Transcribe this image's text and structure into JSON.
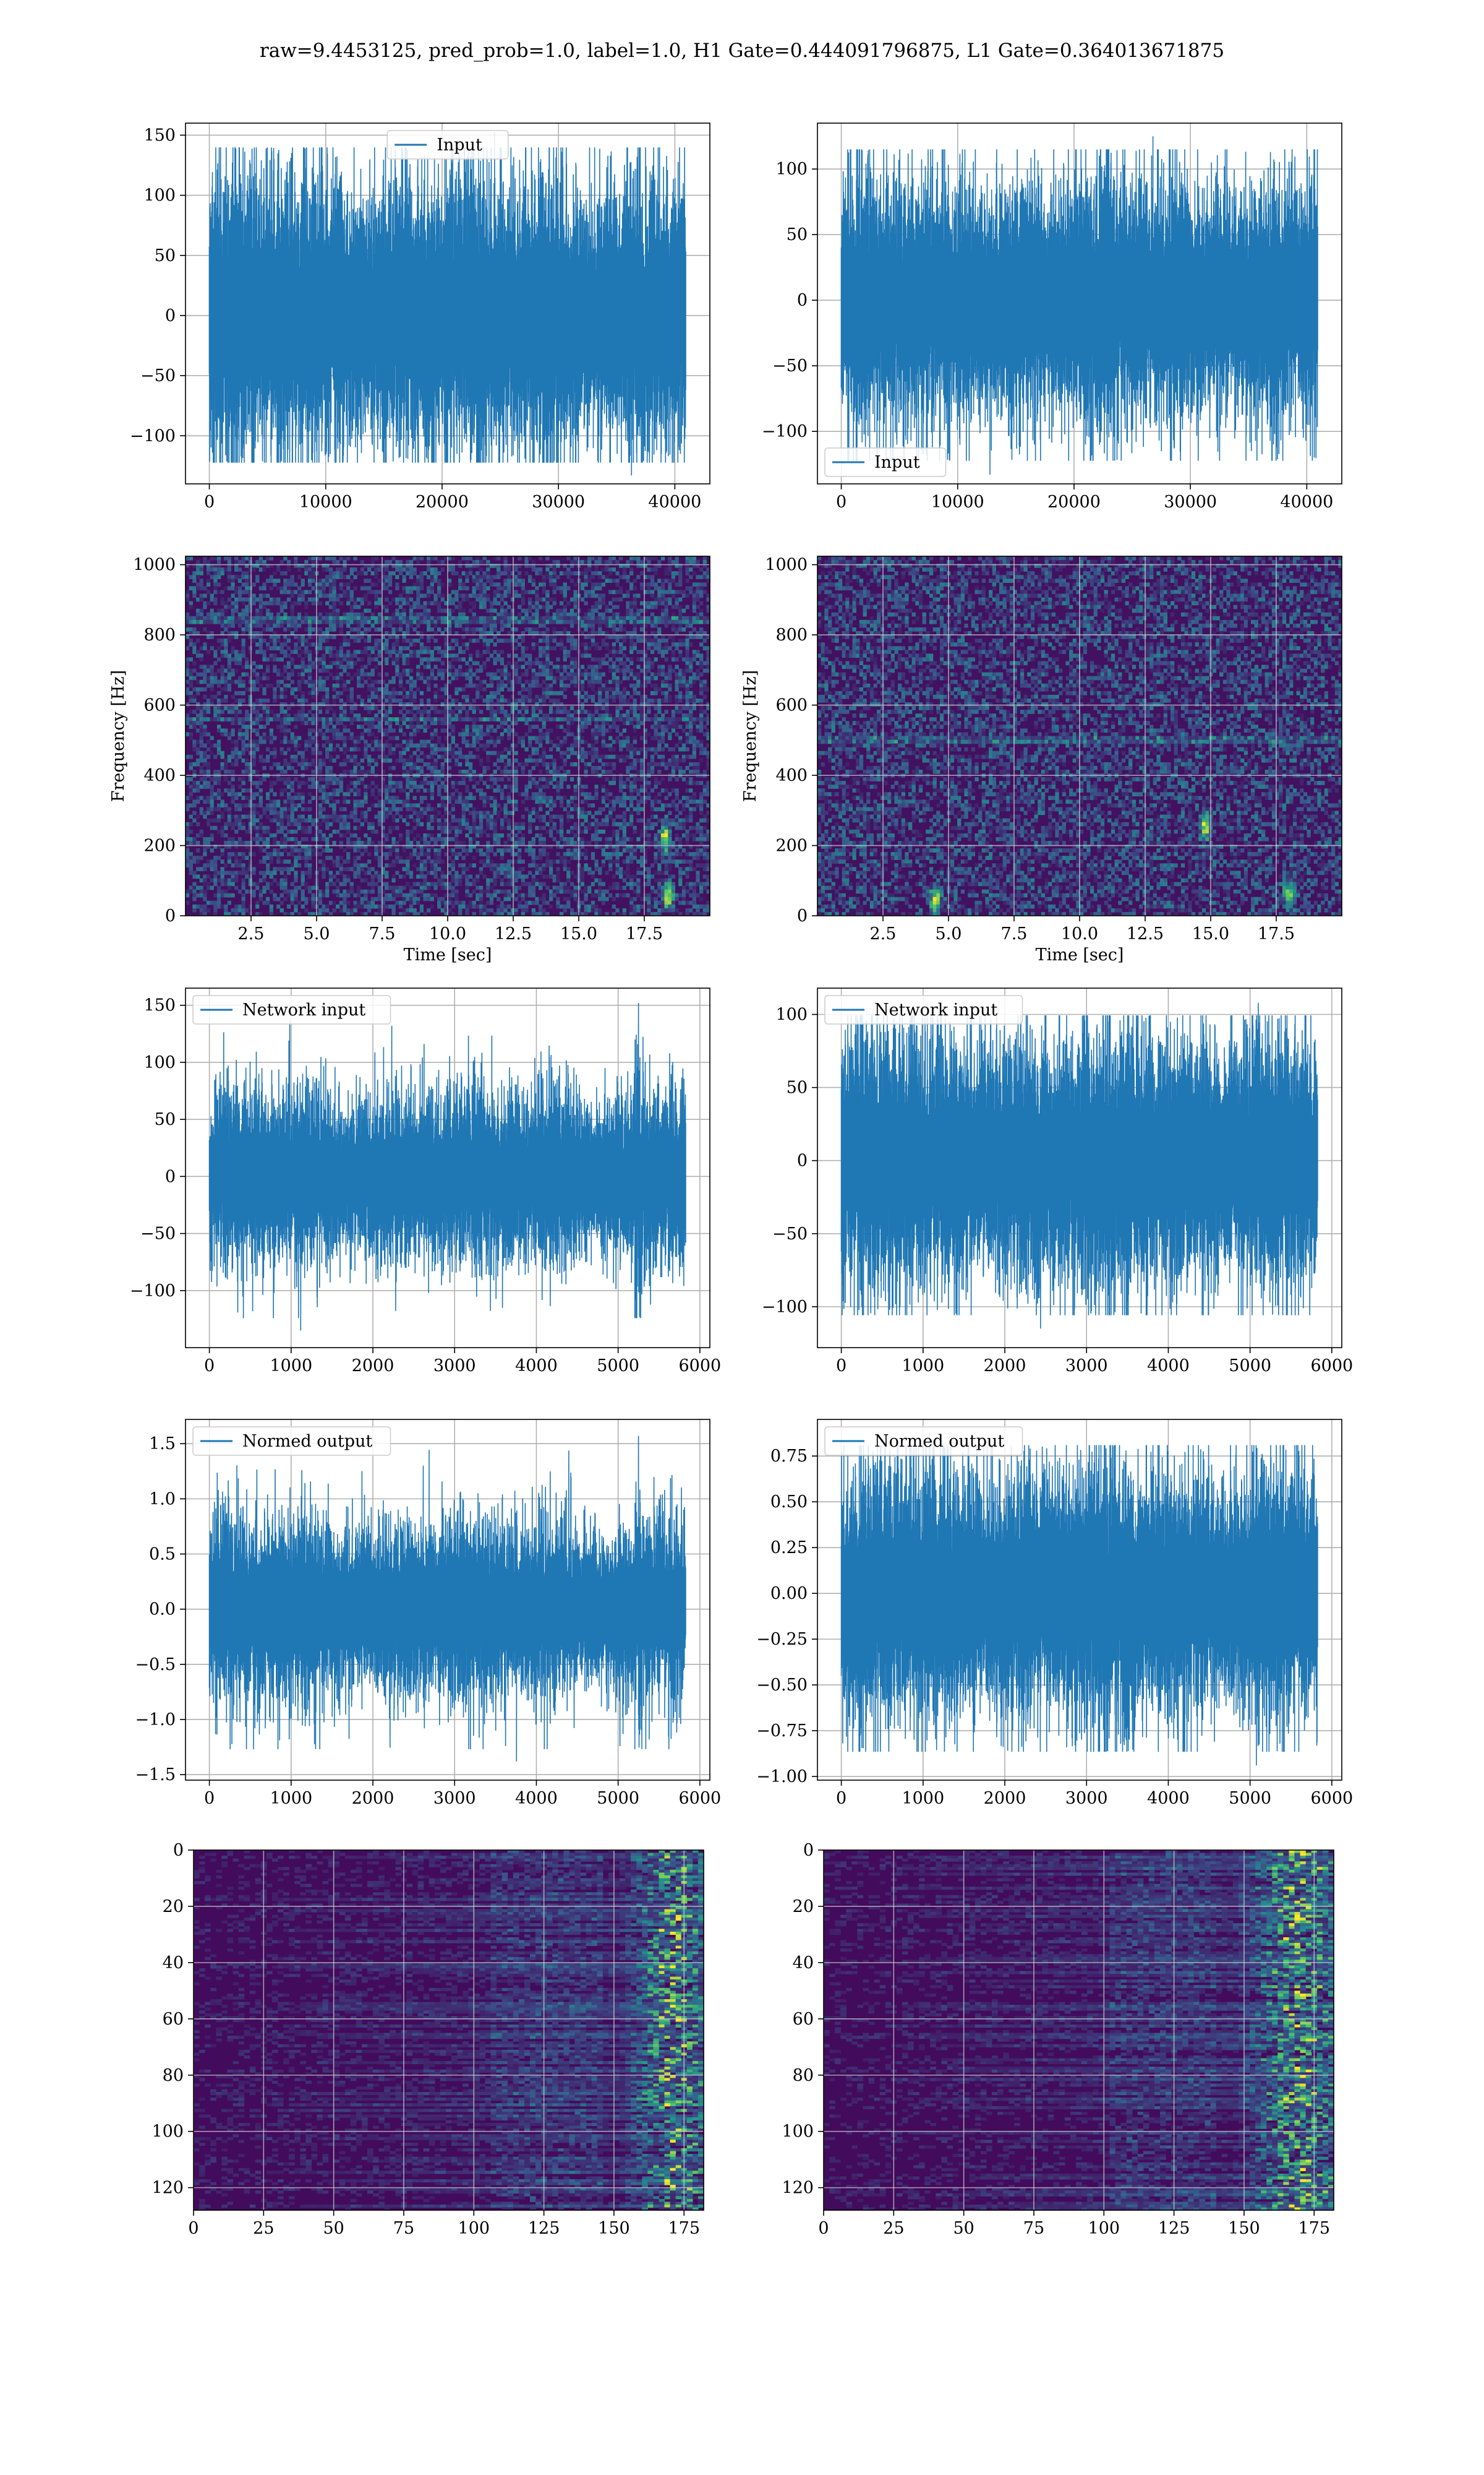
{
  "figure": {
    "title": "raw=9.4453125, pred_prob=1.0, label=1.0, H1 Gate=0.444091796875, L1 Gate=0.364013671875"
  },
  "colors": {
    "line": "#1f77b4",
    "grid": "#b0b0b0",
    "viridis_low": "#440154",
    "viridis_mid": "#21918c",
    "viridis_high": "#fde725"
  },
  "chart_data": [
    {
      "id": "h1_input",
      "type": "line",
      "row": 0,
      "col": 0,
      "series": [
        {
          "name": "Input",
          "n": 40960,
          "std": 38,
          "peak_max": 152,
          "peak_min": -133
        }
      ],
      "legend": "upper center",
      "xlim": [
        -2048,
        43008
      ],
      "ylim": [
        -140,
        160
      ],
      "xticks": [
        0,
        10000,
        20000,
        30000,
        40000
      ],
      "yticks": [
        -100,
        -50,
        0,
        50,
        100,
        150
      ],
      "xlabel": "",
      "ylabel": "",
      "grid": true
    },
    {
      "id": "l1_input",
      "type": "line",
      "row": 0,
      "col": 1,
      "series": [
        {
          "name": "Input",
          "n": 40960,
          "std": 30,
          "peak_max": 125,
          "peak_min": -133
        }
      ],
      "legend": "lower left",
      "xlim": [
        -2048,
        43008
      ],
      "ylim": [
        -140,
        135
      ],
      "xticks": [
        0,
        10000,
        20000,
        30000,
        40000
      ],
      "yticks": [
        -100,
        -50,
        0,
        50,
        100
      ],
      "xlabel": "",
      "ylabel": "",
      "grid": true
    },
    {
      "id": "h1_spectrogram",
      "type": "heatmap",
      "row": 1,
      "col": 0,
      "xlim": [
        0,
        20
      ],
      "ylim": [
        0,
        1024
      ],
      "xticks": [
        2.5,
        5.0,
        7.5,
        10.0,
        12.5,
        15.0,
        17.5
      ],
      "yticks": [
        0,
        200,
        400,
        600,
        800,
        1000
      ],
      "xlabel": "Time [sec]",
      "ylabel": "Frequency [Hz]",
      "grid": true,
      "lines_hz": [
        560,
        840
      ],
      "hot_spots": [
        {
          "t": 18.3,
          "f": 220
        },
        {
          "t": 18.4,
          "f": 60
        }
      ]
    },
    {
      "id": "l1_spectrogram",
      "type": "heatmap",
      "row": 1,
      "col": 1,
      "xlim": [
        0,
        20
      ],
      "ylim": [
        0,
        1024
      ],
      "xticks": [
        2.5,
        5.0,
        7.5,
        10.0,
        12.5,
        15.0,
        17.5
      ],
      "yticks": [
        0,
        200,
        400,
        600,
        800,
        1000
      ],
      "xlabel": "Time [sec]",
      "ylabel": "Frequency [Hz]",
      "grid": true,
      "lines_hz": [
        500
      ],
      "hot_spots": [
        {
          "t": 14.8,
          "f": 260
        },
        {
          "t": 18.0,
          "f": 60
        },
        {
          "t": 4.5,
          "f": 40
        }
      ]
    },
    {
      "id": "h1_network_input",
      "type": "line",
      "row": 2,
      "col": 0,
      "series": [
        {
          "name": "Network input",
          "n": 5830,
          "std": 24,
          "peak_max": 152,
          "peak_min": -135,
          "burst_at": 5250
        }
      ],
      "legend": "upper left",
      "xlim": [
        -292,
        6122
      ],
      "ylim": [
        -150,
        165
      ],
      "xticks": [
        0,
        1000,
        2000,
        3000,
        4000,
        5000,
        6000
      ],
      "yticks": [
        -100,
        -50,
        0,
        50,
        100,
        150
      ],
      "xlabel": "",
      "ylabel": "",
      "grid": true
    },
    {
      "id": "l1_network_input",
      "type": "line",
      "row": 2,
      "col": 1,
      "series": [
        {
          "name": "Network input",
          "n": 5830,
          "std": 28,
          "peak_max": 108,
          "peak_min": -115
        }
      ],
      "legend": "upper left",
      "xlim": [
        -292,
        6122
      ],
      "ylim": [
        -128,
        118
      ],
      "xticks": [
        0,
        1000,
        2000,
        3000,
        4000,
        5000,
        6000
      ],
      "yticks": [
        -100,
        -50,
        0,
        50,
        100
      ],
      "xlabel": "",
      "ylabel": "",
      "grid": true
    },
    {
      "id": "h1_normed_output",
      "type": "line",
      "row": 3,
      "col": 0,
      "series": [
        {
          "name": "Normed output",
          "n": 5830,
          "std": 0.26,
          "peak_max": 1.57,
          "peak_min": -1.38,
          "burst_at": 5250
        }
      ],
      "legend": "upper left",
      "xlim": [
        -292,
        6122
      ],
      "ylim": [
        -1.55,
        1.72
      ],
      "xticks": [
        0,
        1000,
        2000,
        3000,
        4000,
        5000,
        6000
      ],
      "yticks": [
        -1.5,
        -1.0,
        -0.5,
        0.0,
        0.5,
        1.0,
        1.5
      ],
      "xlabel": "",
      "ylabel": "",
      "grid": true
    },
    {
      "id": "l1_normed_output",
      "type": "line",
      "row": 3,
      "col": 1,
      "series": [
        {
          "name": "Normed output",
          "n": 5830,
          "std": 0.22,
          "peak_max": 0.88,
          "peak_min": -0.94
        }
      ],
      "legend": "upper left",
      "xlim": [
        -292,
        6122
      ],
      "ylim": [
        -1.02,
        0.95
      ],
      "xticks": [
        0,
        1000,
        2000,
        3000,
        4000,
        5000,
        6000
      ],
      "yticks": [
        -1.0,
        -0.75,
        -0.5,
        -0.25,
        0.0,
        0.25,
        0.5,
        0.75
      ],
      "xlabel": "",
      "ylabel": "",
      "grid": true
    },
    {
      "id": "h1_feature_map",
      "type": "heatmap",
      "row": 4,
      "col": 0,
      "rows": 128,
      "cols": 182,
      "xlim": [
        0,
        182
      ],
      "ylim": [
        128,
        0
      ],
      "xticks": [
        0,
        25,
        50,
        75,
        100,
        125,
        150,
        175
      ],
      "yticks": [
        0,
        20,
        40,
        60,
        80,
        100,
        120
      ],
      "xlabel": "",
      "ylabel": "",
      "grid": true,
      "hot_column_range": [
        145,
        180
      ]
    },
    {
      "id": "l1_feature_map",
      "type": "heatmap",
      "row": 4,
      "col": 1,
      "rows": 128,
      "cols": 182,
      "xlim": [
        0,
        182
      ],
      "ylim": [
        128,
        0
      ],
      "xticks": [
        0,
        25,
        50,
        75,
        100,
        125,
        150,
        175
      ],
      "yticks": [
        0,
        20,
        40,
        60,
        80,
        100,
        120
      ],
      "xlabel": "",
      "ylabel": "",
      "grid": true,
      "hot_column_range": [
        140,
        182
      ]
    }
  ]
}
